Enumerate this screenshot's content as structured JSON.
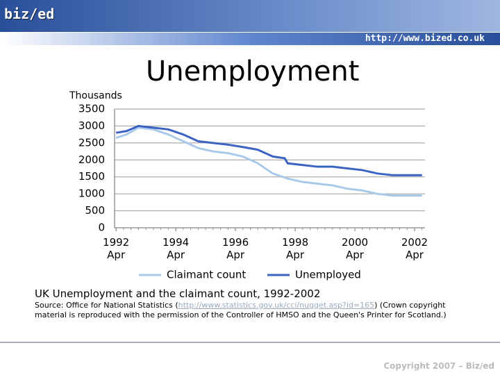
{
  "header": {
    "logo": "biz/ed",
    "url": "http://www.bized.co.uk"
  },
  "chart_data": {
    "type": "line",
    "title": "Unemployment",
    "y_label": "Thousands",
    "x": [
      1992.25,
      1992.6,
      1993.0,
      1993.5,
      1994.0,
      1994.5,
      1995.0,
      1995.5,
      1996.0,
      1996.5,
      1997.0,
      1997.5,
      1997.9,
      1998.0,
      1998.5,
      1999.0,
      1999.5,
      2000.0,
      2000.5,
      2001.0,
      2001.5,
      2002.0,
      2002.5
    ],
    "series": [
      {
        "name": "Claimant count",
        "color": "#a9c9ea",
        "values": [
          2650,
          2750,
          2950,
          2900,
          2750,
          2550,
          2350,
          2250,
          2200,
          2100,
          1900,
          1600,
          1480,
          1450,
          1350,
          1300,
          1250,
          1150,
          1100,
          1000,
          950,
          950,
          950
        ]
      },
      {
        "name": "Unemployed",
        "color": "#3b63c4",
        "values": [
          2800,
          2850,
          3000,
          2950,
          2900,
          2750,
          2550,
          2500,
          2450,
          2380,
          2300,
          2100,
          2050,
          1900,
          1850,
          1800,
          1800,
          1750,
          1700,
          1600,
          1550,
          1550,
          1550
        ]
      }
    ],
    "xlim": [
      1992.2,
      2002.6
    ],
    "xticks": [
      {
        "value": 1992.25,
        "label": "1992 Apr"
      },
      {
        "value": 1994.25,
        "label": "1994 Apr"
      },
      {
        "value": 1996.25,
        "label": "1996 Apr"
      },
      {
        "value": 1998.25,
        "label": "1998 Apr"
      },
      {
        "value": 2000.25,
        "label": "2000 Apr"
      },
      {
        "value": 2002.25,
        "label": "2002 Apr"
      }
    ],
    "ylim": [
      0,
      3500
    ],
    "yticks": [
      0,
      500,
      1000,
      1500,
      2000,
      2500,
      3000,
      3500
    ],
    "grid": true,
    "legend": "bottom"
  },
  "caption": "UK Unemployment and the claimant count, 1992-2002",
  "source": {
    "prefix": "Source: Office for National Statistics (",
    "link": "http://www.statistics.gov.uk/cci/nugget.asp?id=165",
    "suffix": ") (Crown copyright material is reproduced with the permission of the Controller of HMSO and the Queen's Printer for Scotland.)"
  },
  "footer": "Copyright 2007 – Biz/ed"
}
